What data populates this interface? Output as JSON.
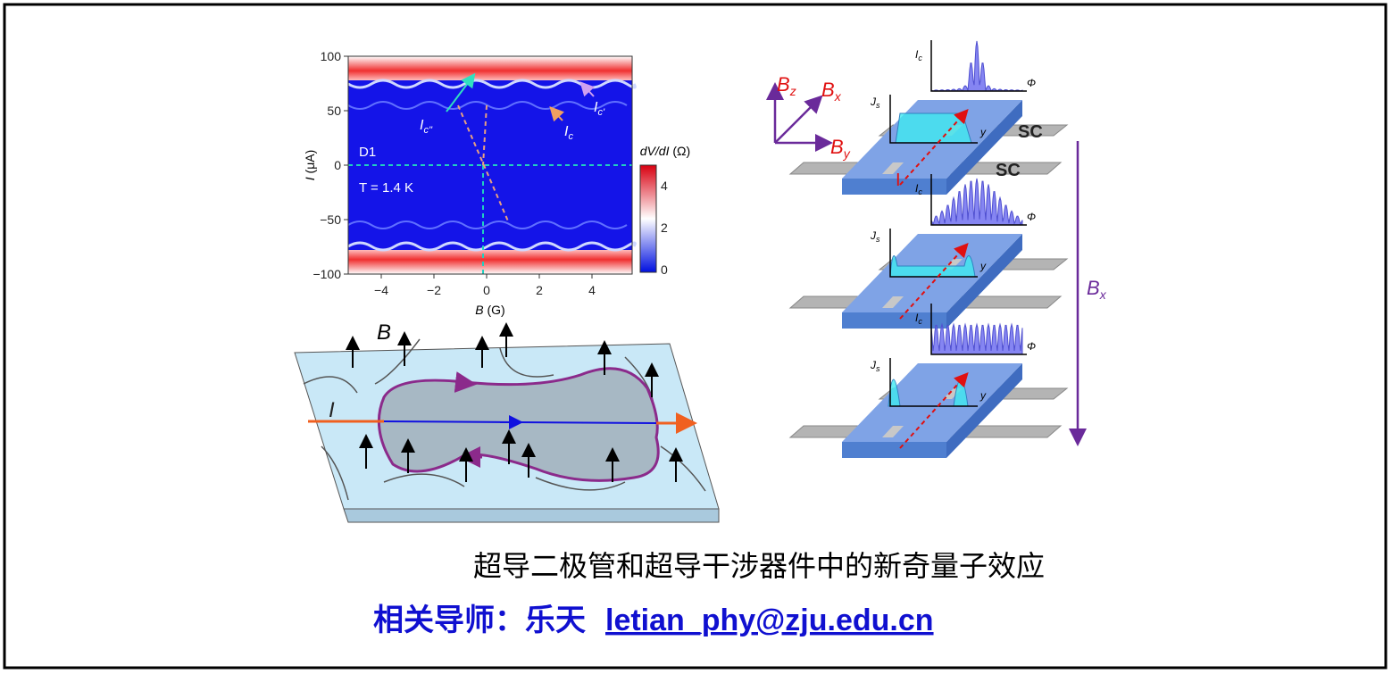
{
  "plot": {
    "y_axis_label": {
      "main": "I",
      "unit": " (μA)"
    },
    "x_axis_label": {
      "main": "B",
      "unit": " (G)"
    },
    "y_ticks": [
      "100",
      "50",
      "0",
      "−50",
      "−100"
    ],
    "x_ticks": [
      "−4",
      "−2",
      "0",
      "2",
      "4"
    ],
    "colorbar_label": {
      "main": "dV/dI",
      "unit": " (Ω)"
    },
    "colorbar_ticks": [
      "4",
      "2",
      "0"
    ],
    "device": "D1",
    "temperature": "T = 1.4 K",
    "annotations": [
      {
        "main": "I",
        "sub": "c''"
      },
      {
        "main": "I",
        "sub": "c"
      },
      {
        "main": "I",
        "sub": "c'"
      }
    ]
  },
  "sketch": {
    "field_label": "B",
    "current_label": "I"
  },
  "schematic": {
    "axes": [
      {
        "main": "B",
        "sub": "z"
      },
      {
        "main": "B",
        "sub": "x"
      },
      {
        "main": "B",
        "sub": "y"
      }
    ],
    "electrodes": [
      "SC",
      "SC"
    ],
    "current": "I",
    "panels": [
      {
        "critical_current": {
          "main": "I",
          "sub": "c"
        },
        "flux": "Φ",
        "current_density": {
          "main": "J",
          "sub": "s"
        },
        "coordinate": "y"
      },
      {
        "critical_current": {
          "main": "I",
          "sub": "c"
        },
        "flux": "Φ",
        "current_density": {
          "main": "J",
          "sub": "s"
        },
        "coordinate": "y"
      },
      {
        "critical_current": {
          "main": "I",
          "sub": "c"
        },
        "flux": "Φ",
        "current_density": {
          "main": "J",
          "sub": "s"
        },
        "coordinate": "y"
      }
    ],
    "sweep_label": {
      "main": "B",
      "sub": "x"
    }
  },
  "caption": "超导二极管和超导干涉器件中的新奇量子效应",
  "advisor": {
    "label": "相关导师：",
    "name": "乐天",
    "email": "letian_phy@zju.edu.cn"
  }
}
